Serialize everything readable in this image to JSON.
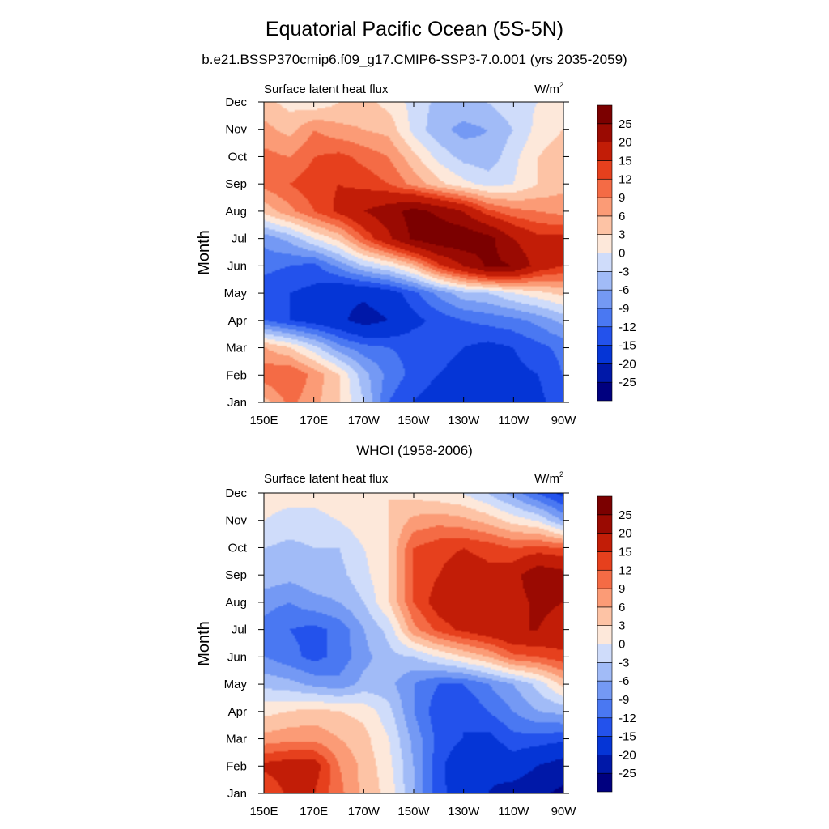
{
  "title": "Equatorial Pacific Ocean (5S-5N)",
  "subtitle": "b.e21.BSSP370cmip6.f09_g17.CMIP6-SSP3-7.0.001 (yrs 2035-2059)",
  "colorbar": {
    "labels": [
      "25",
      "20",
      "15",
      "12",
      "9",
      "6",
      "3",
      "0",
      "-3",
      "-6",
      "-9",
      "-12",
      "-15",
      "-20",
      "-25"
    ],
    "levels": [
      -25,
      -20,
      -15,
      -12,
      -9,
      -6,
      -3,
      0,
      3,
      6,
      9,
      12,
      15,
      20,
      25
    ],
    "colors": [
      "#00007f",
      "#0018a8",
      "#0535d6",
      "#2352ec",
      "#4a78f2",
      "#7499f4",
      "#a1bbf7",
      "#cfdcfa",
      "#fde8da",
      "#fdc3a5",
      "#fb9b76",
      "#f46b45",
      "#e6401d",
      "#c21d07",
      "#9a0a02",
      "#7b0000"
    ]
  },
  "chart_data": [
    {
      "type": "heatmap",
      "panel_title": "",
      "left_label": "Surface latent heat flux",
      "right_label": "W/m",
      "right_label_sup": "2",
      "ylabel": "Month",
      "xlabel": "",
      "x_ticks": [
        "150E",
        "170E",
        "170W",
        "150W",
        "130W",
        "110W",
        "90W"
      ],
      "y_ticks": [
        "Jan",
        "Feb",
        "Mar",
        "Apr",
        "May",
        "Jun",
        "Jul",
        "Aug",
        "Sep",
        "Oct",
        "Nov",
        "Dec"
      ],
      "x": [
        "150E",
        "160E",
        "170E",
        "180",
        "170W",
        "160W",
        "150W",
        "140W",
        "130W",
        "120W",
        "110W",
        "100W",
        "90W"
      ],
      "y": [
        "Jan",
        "Feb",
        "Mar",
        "Apr",
        "May",
        "Jun",
        "Jul",
        "Aug",
        "Sep",
        "Oct",
        "Nov",
        "Dec"
      ],
      "values": [
        [
          5,
          10,
          7,
          3,
          -3,
          -12,
          -15,
          -17,
          -18,
          -19,
          -18,
          -16,
          -13
        ],
        [
          11,
          12,
          8,
          3,
          -5,
          -10,
          -13,
          -15,
          -16,
          -17,
          -16,
          -15,
          -12
        ],
        [
          6,
          3,
          -2,
          -8,
          -11,
          -12,
          -13,
          -14,
          -15,
          -16,
          -15,
          -13,
          -11
        ],
        [
          -12,
          -15,
          -17,
          -19,
          -22,
          -20,
          -16,
          -14,
          -12,
          -11,
          -10,
          -8,
          -5
        ],
        [
          -14,
          -15,
          -16,
          -19,
          -19,
          -17,
          -13,
          -8,
          -4,
          -3,
          0,
          2,
          4
        ],
        [
          -11,
          -12,
          -13,
          -8,
          -3,
          0,
          5,
          14,
          20,
          26,
          25,
          18,
          15
        ],
        [
          -8,
          -5,
          0,
          4,
          12,
          19,
          26,
          29,
          29,
          27,
          20,
          16,
          16
        ],
        [
          4,
          8,
          12,
          16,
          20,
          23,
          27,
          24,
          20,
          13,
          10,
          9,
          8
        ],
        [
          10,
          12,
          14,
          15,
          14,
          12,
          8,
          4,
          1,
          -1,
          0,
          3,
          5
        ],
        [
          10,
          9,
          12,
          13,
          11,
          9,
          4,
          -1,
          -4,
          -5,
          -1,
          3,
          5
        ],
        [
          7,
          5,
          9,
          7,
          6,
          5,
          -1,
          -5,
          -7,
          -6,
          -3,
          1,
          3
        ],
        [
          4,
          2,
          1,
          3,
          4,
          2,
          -1,
          -4,
          -4,
          -3,
          -1,
          0,
          2
        ]
      ]
    },
    {
      "type": "heatmap",
      "panel_title": "WHOI (1958-2006)",
      "left_label": "Surface latent heat flux",
      "right_label": "W/m",
      "right_label_sup": "2",
      "ylabel": "Month",
      "xlabel": "",
      "x_ticks": [
        "150E",
        "170E",
        "170W",
        "150W",
        "130W",
        "110W",
        "90W"
      ],
      "y_ticks": [
        "Jan",
        "Feb",
        "Mar",
        "Apr",
        "May",
        "Jun",
        "Jul",
        "Aug",
        "Sep",
        "Oct",
        "Nov",
        "Dec"
      ],
      "x": [
        "150E",
        "160E",
        "170E",
        "180",
        "170W",
        "160W",
        "150W",
        "140W",
        "130W",
        "120W",
        "110W",
        "100W",
        "90W"
      ],
      "y": [
        "Jan",
        "Feb",
        "Mar",
        "Apr",
        "May",
        "Jun",
        "Jul",
        "Aug",
        "Sep",
        "Oct",
        "Nov",
        "Dec"
      ],
      "values": [
        [
          12,
          16,
          15,
          10,
          5,
          2,
          -6,
          -14,
          -17,
          -20,
          -22,
          -24,
          -26
        ],
        [
          16,
          17,
          17,
          9,
          5,
          1,
          -6,
          -14,
          -18,
          -19,
          -17,
          -20,
          -22
        ],
        [
          7,
          8,
          8,
          6,
          4,
          0,
          -7,
          -13,
          -15,
          -16,
          -13,
          -13,
          -14
        ],
        [
          2,
          3,
          4,
          3,
          2,
          -2,
          -9,
          -14,
          -15,
          -12,
          -9,
          -6,
          -5
        ],
        [
          -4,
          -5,
          -7,
          -8,
          -5,
          -5,
          -9,
          -12,
          -12,
          -9,
          -6,
          -2,
          4
        ],
        [
          -9,
          -11,
          -13,
          -11,
          -7,
          -4,
          -3,
          0,
          3,
          6,
          11,
          12,
          14
        ],
        [
          -10,
          -12,
          -13,
          -11,
          -6,
          -2,
          8,
          13,
          16,
          18,
          20,
          20,
          18
        ],
        [
          -8,
          -9,
          -7,
          -6,
          -3,
          3,
          12,
          17,
          19,
          17,
          18,
          21,
          20
        ],
        [
          -4,
          -5,
          -4,
          -4,
          -1,
          3,
          12,
          15,
          17,
          16,
          18,
          24,
          22
        ],
        [
          -3,
          -4,
          -3,
          -3,
          0,
          3,
          12,
          14,
          15,
          14,
          12,
          13,
          12
        ],
        [
          0,
          -1,
          -1,
          0,
          2,
          3,
          7,
          8,
          7,
          5,
          2,
          0,
          -6
        ],
        [
          1,
          1,
          1,
          2,
          2,
          3,
          2,
          1,
          0,
          -3,
          -7,
          -12,
          -16
        ]
      ]
    }
  ]
}
